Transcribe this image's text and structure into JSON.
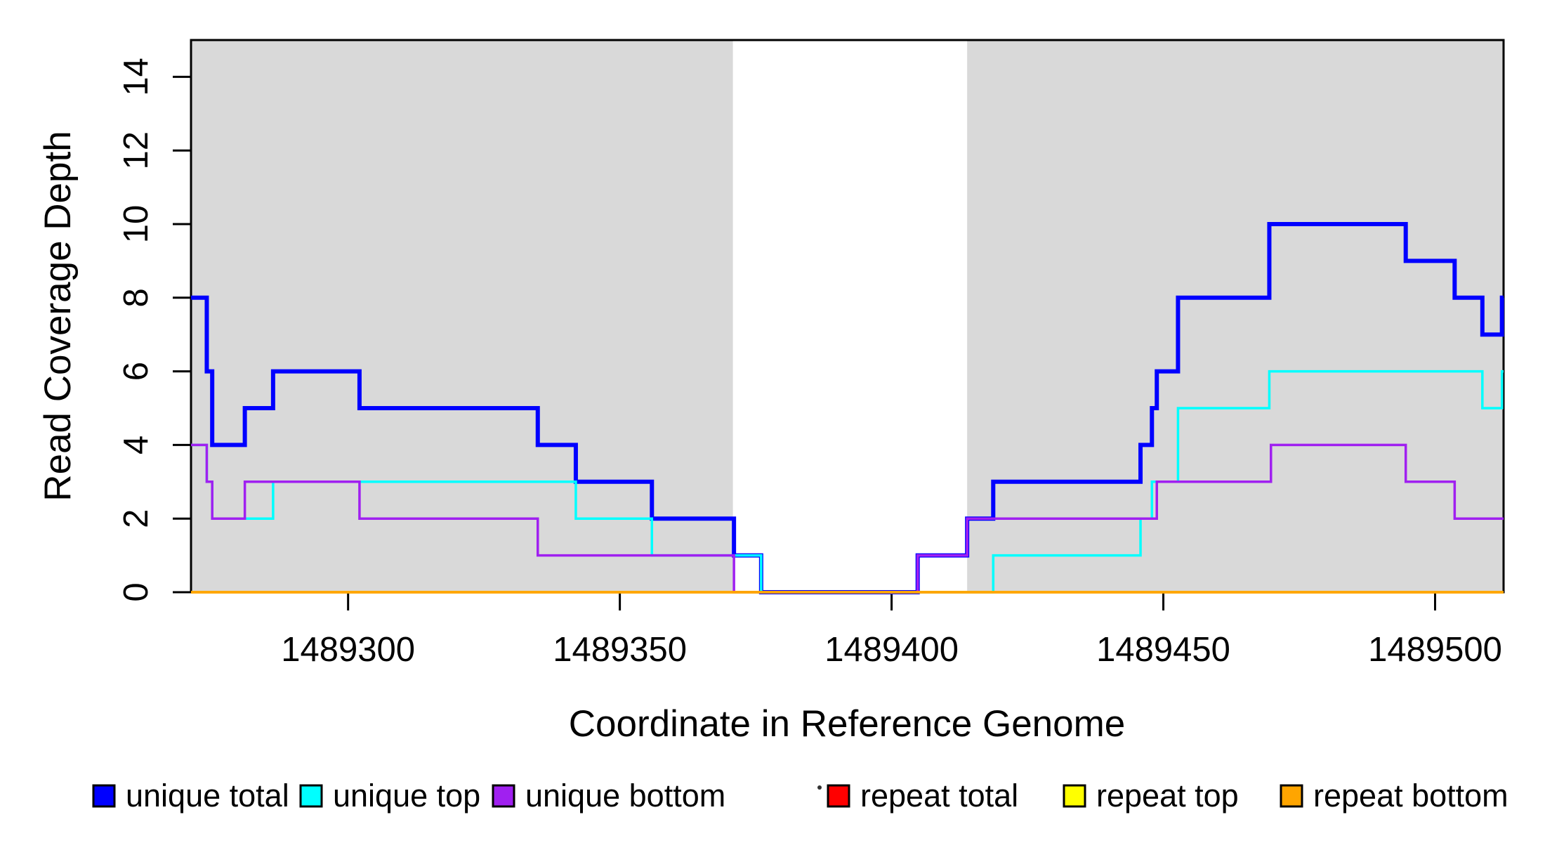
{
  "chart_data": {
    "type": "line",
    "subtype": "step-after",
    "title": "",
    "xlabel": "Coordinate in Reference Genome",
    "ylabel": "Read Coverage Depth",
    "xlim": [
      1489271.1,
      1489512.6
    ],
    "ylim": [
      0,
      15
    ],
    "x_ticks": [
      1489300,
      1489350,
      1489400,
      1489450,
      1489500
    ],
    "y_ticks": [
      0,
      2,
      4,
      6,
      8,
      10,
      12,
      14
    ],
    "grid": "off",
    "shade_color": "#D9D9D9",
    "shaded_regions": [
      {
        "x0": 1489271.1,
        "x1": 1489370.8
      },
      {
        "x0": 1489413.9,
        "x1": 1489512.6
      }
    ],
    "series": [
      {
        "name": "unique total",
        "color": "#0000FF",
        "width": 6,
        "steps": [
          [
            1489271.1,
            8
          ],
          [
            1489274,
            6
          ],
          [
            1489275,
            4
          ],
          [
            1489281,
            5
          ],
          [
            1489286.2,
            6
          ],
          [
            1489302.1,
            5
          ],
          [
            1489334.9,
            4
          ],
          [
            1489341.9,
            3
          ],
          [
            1489355.9,
            2
          ],
          [
            1489371,
            1
          ],
          [
            1489376,
            0
          ],
          [
            1489404.8,
            1
          ],
          [
            1489413.9,
            2
          ],
          [
            1489418.7,
            3
          ],
          [
            1489445.8,
            4
          ],
          [
            1489447.9,
            5
          ],
          [
            1489448.8,
            6
          ],
          [
            1489452.7,
            8
          ],
          [
            1489469.5,
            10
          ],
          [
            1489494.6,
            9
          ],
          [
            1489503.6,
            8
          ],
          [
            1489508.7,
            7
          ],
          [
            1489512.3,
            8
          ]
        ]
      },
      {
        "name": "unique top",
        "color": "#00FFFF",
        "width": 3.5,
        "steps": [
          [
            1489271.1,
            4
          ],
          [
            1489274,
            3
          ],
          [
            1489275,
            2
          ],
          [
            1489286.2,
            3
          ],
          [
            1489341.9,
            2
          ],
          [
            1489355.9,
            1
          ],
          [
            1489376,
            0
          ],
          [
            1489418.7,
            1
          ],
          [
            1489445.8,
            2
          ],
          [
            1489447.9,
            3
          ],
          [
            1489452.7,
            5
          ],
          [
            1489469.5,
            6
          ],
          [
            1489508.7,
            5
          ],
          [
            1489512.3,
            6
          ]
        ]
      },
      {
        "name": "unique bottom",
        "color": "#A020F0",
        "width": 3.5,
        "steps": [
          [
            1489271.1,
            4
          ],
          [
            1489274,
            3
          ],
          [
            1489275,
            2
          ],
          [
            1489281,
            3
          ],
          [
            1489302.1,
            2
          ],
          [
            1489334.9,
            1
          ],
          [
            1489371,
            0
          ],
          [
            1489404.8,
            1
          ],
          [
            1489413.9,
            2
          ],
          [
            1489448.8,
            3
          ],
          [
            1489469.8,
            4
          ],
          [
            1489494.6,
            3
          ],
          [
            1489503.6,
            2
          ]
        ]
      },
      {
        "name": "repeat total",
        "color": "#FF0000",
        "width": 3.5,
        "steps": [
          [
            1489271.1,
            0
          ]
        ]
      },
      {
        "name": "repeat top",
        "color": "#FFFF00",
        "width": 3.5,
        "steps": [
          [
            1489271.1,
            0
          ]
        ]
      },
      {
        "name": "repeat bottom",
        "color": "#FFA500",
        "width": 3.5,
        "steps": [
          [
            1489271.1,
            0
          ]
        ]
      }
    ],
    "legend": {
      "position": "bottom",
      "items": [
        {
          "label": "unique total",
          "color": "#0000FF"
        },
        {
          "label": "unique top",
          "color": "#00FFFF"
        },
        {
          "label": "unique bottom",
          "color": "#A020F0"
        },
        {
          "label": "repeat total",
          "color": "#FF0000"
        },
        {
          "label": "repeat top",
          "color": "#FFFF00"
        },
        {
          "label": "repeat bottom",
          "color": "#FFA500"
        }
      ]
    }
  }
}
